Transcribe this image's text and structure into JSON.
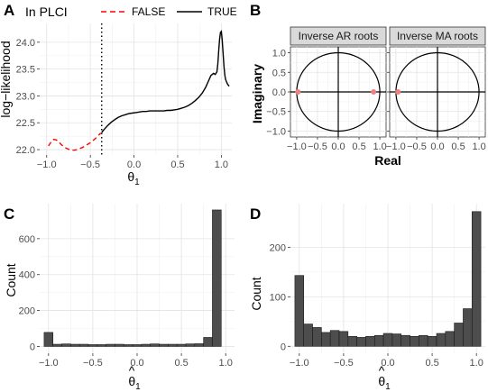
{
  "panels": {
    "A": {
      "letter": "A",
      "legend": {
        "title": "In PLCI",
        "entries": [
          {
            "label": "FALSE",
            "color": "#ff0000",
            "dash": true
          },
          {
            "label": "TRUE",
            "color": "#000000",
            "dash": false
          }
        ]
      },
      "ylabel": "log−likelihood",
      "xlabel_base": "θ",
      "xlabel_sub": "1"
    },
    "B": {
      "letter": "B",
      "ylabel": "Imaginary",
      "xlabel": "Real",
      "facets": [
        "Inverse AR roots",
        "Inverse MA roots"
      ]
    },
    "C": {
      "letter": "C",
      "ylabel": "Count",
      "xlabel_base": "θ",
      "xlabel_hat": "^",
      "xlabel_sub": "1"
    },
    "D": {
      "letter": "D",
      "ylabel": "Count",
      "xlabel_base": "θ",
      "xlabel_hat": "^",
      "xlabel_sub": "1"
    }
  },
  "chart_data": [
    {
      "panel": "A",
      "type": "line",
      "xlim": [
        -1.08,
        1.12
      ],
      "ylim": [
        21.9,
        24.35
      ],
      "xticks": [
        -1.0,
        -0.5,
        0.0,
        0.5,
        1.0
      ],
      "xtick_labels": [
        "−1.0",
        "−0.5",
        "0.0",
        "0.5",
        "1.0"
      ],
      "yticks": [
        22.0,
        22.5,
        23.0,
        23.5,
        24.0
      ],
      "ytick_labels": [
        "22.0",
        "22.5",
        "23.0",
        "23.5",
        "24.0"
      ],
      "vline": -0.37,
      "series": [
        {
          "name": "FALSE",
          "color": "#ff0000",
          "dash": true,
          "x": [
            -0.98,
            -0.95,
            -0.92,
            -0.89,
            -0.86,
            -0.83,
            -0.8,
            -0.77,
            -0.74,
            -0.71,
            -0.68,
            -0.65,
            -0.62,
            -0.59,
            -0.56,
            -0.53,
            -0.5,
            -0.47,
            -0.44,
            -0.41,
            -0.38
          ],
          "y": [
            22.07,
            22.14,
            22.19,
            22.18,
            22.14,
            22.09,
            22.05,
            22.02,
            22.0,
            21.99,
            21.99,
            22.0,
            22.02,
            22.04,
            22.07,
            22.1,
            22.13,
            22.17,
            22.21,
            22.26,
            22.31
          ]
        },
        {
          "name": "TRUE",
          "color": "#000000",
          "dash": false,
          "x": [
            -0.37,
            -0.34,
            -0.3,
            -0.26,
            -0.22,
            -0.18,
            -0.14,
            -0.1,
            -0.06,
            -0.02,
            0.02,
            0.06,
            0.1,
            0.14,
            0.18,
            0.22,
            0.26,
            0.3,
            0.34,
            0.38,
            0.42,
            0.46,
            0.5,
            0.54,
            0.58,
            0.62,
            0.66,
            0.7,
            0.74,
            0.78,
            0.82,
            0.85,
            0.88,
            0.91,
            0.93,
            0.95,
            0.96,
            0.97,
            0.98,
            0.99,
            1.0,
            1.01,
            1.02,
            1.03,
            1.04,
            1.05,
            1.07,
            1.09
          ],
          "y": [
            22.32,
            22.38,
            22.45,
            22.51,
            22.56,
            22.6,
            22.63,
            22.65,
            22.67,
            22.68,
            22.69,
            22.7,
            22.71,
            22.71,
            22.72,
            22.72,
            22.72,
            22.72,
            22.72,
            22.73,
            22.73,
            22.74,
            22.75,
            22.77,
            22.79,
            22.82,
            22.86,
            22.91,
            22.97,
            23.05,
            23.16,
            23.27,
            23.38,
            23.42,
            23.4,
            23.45,
            23.6,
            23.85,
            24.05,
            24.18,
            24.2,
            24.05,
            23.8,
            23.55,
            23.38,
            23.3,
            23.22,
            23.18
          ]
        }
      ]
    },
    {
      "panel": "B",
      "type": "scatter",
      "xlim": [
        -1.15,
        1.15
      ],
      "ylim": [
        -1.15,
        1.15
      ],
      "xticks": [
        -1.0,
        -0.5,
        0.0,
        0.5,
        1.0
      ],
      "xtick_labels": [
        "−1.0",
        "−0.5",
        "0.0",
        "0.5",
        "1.0"
      ],
      "yticks": [
        -1.0,
        -0.5,
        0.0,
        0.5,
        1.0
      ],
      "ytick_labels": [
        "−1.0",
        "−0.5",
        "0.0",
        "0.5",
        "1.0"
      ],
      "facets": [
        {
          "name": "Inverse AR roots",
          "points": [
            {
              "x": -0.97,
              "y": 0.0
            },
            {
              "x": 0.85,
              "y": 0.0
            }
          ],
          "color": "#f08080"
        },
        {
          "name": "Inverse MA roots",
          "points": [
            {
              "x": -0.95,
              "y": 0.0
            }
          ],
          "color": "#f08080"
        }
      ]
    },
    {
      "panel": "C",
      "type": "bar",
      "xlim": [
        -1.1,
        1.1
      ],
      "ylim": [
        -38,
        795
      ],
      "xticks": [
        -1.0,
        -0.5,
        0.0,
        0.5,
        1.0
      ],
      "xtick_labels": [
        "−1.0",
        "−0.5",
        "0.0",
        "0.5",
        "1.0"
      ],
      "yticks": [
        0,
        200,
        400,
        600
      ],
      "ytick_labels": [
        "0",
        "200",
        "400",
        "600"
      ],
      "bin_start": -1.05,
      "bin_width": 0.1,
      "values": [
        78,
        12,
        14,
        12,
        12,
        10,
        10,
        12,
        12,
        10,
        10,
        12,
        14,
        12,
        12,
        12,
        14,
        15,
        50,
        760
      ],
      "fill": "#4d4d4d"
    },
    {
      "panel": "D",
      "type": "bar",
      "xlim": [
        -1.1,
        1.1
      ],
      "ylim": [
        -14,
        288
      ],
      "xticks": [
        -1.0,
        -0.5,
        0.0,
        0.5,
        1.0
      ],
      "xtick_labels": [
        "−1.0",
        "−0.5",
        "0.0",
        "0.5",
        "1.0"
      ],
      "yticks": [
        0,
        100,
        200
      ],
      "ytick_labels": [
        "0",
        "100",
        "200"
      ],
      "bin_start": -1.05,
      "bin_width": 0.1,
      "values": [
        143,
        45,
        38,
        28,
        32,
        30,
        20,
        18,
        20,
        22,
        26,
        25,
        22,
        20,
        22,
        20,
        26,
        30,
        47,
        76,
        272
      ],
      "fill": "#4d4d4d"
    }
  ]
}
